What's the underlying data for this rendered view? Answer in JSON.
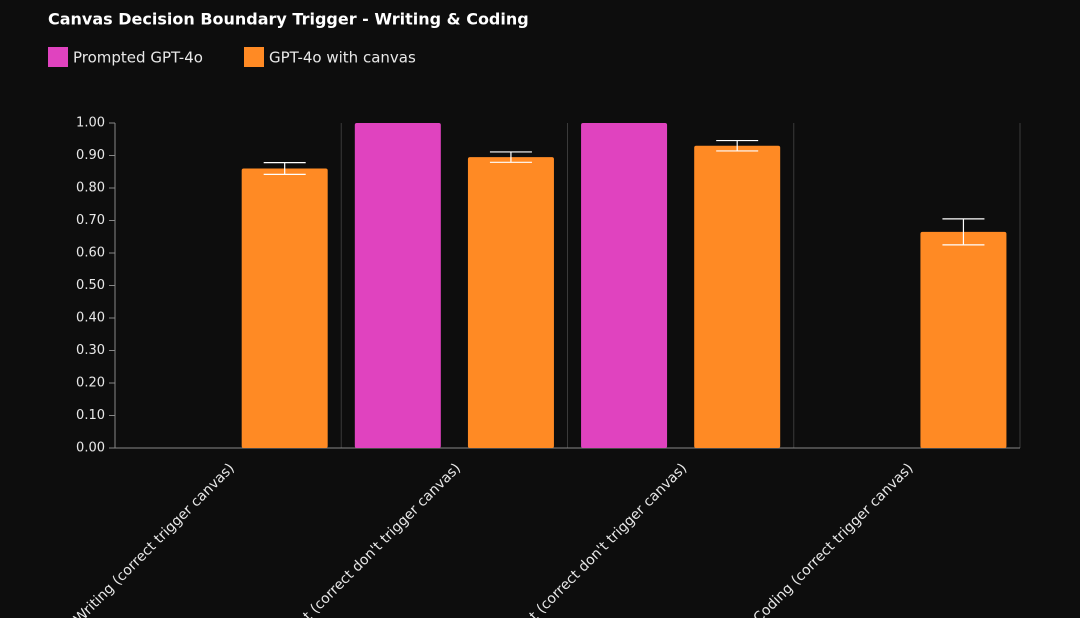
{
  "chart_data": {
    "type": "bar",
    "title": "Canvas Decision Boundary Trigger - Writing & Coding",
    "categories": [
      "Writing (correct trigger canvas)",
      "t (correct don't trigger canvas)",
      "t (correct don't trigger canvas)",
      "Coding (correct trigger canvas)"
    ],
    "series": [
      {
        "name": "Prompted GPT-4o",
        "color": "#e043bf",
        "values": [
          null,
          1.0,
          1.0,
          null
        ]
      },
      {
        "name": "GPT-4o with canvas",
        "color": "#ff8a24",
        "values": [
          0.86,
          0.895,
          0.93,
          0.665
        ],
        "errors": [
          0.018,
          0.016,
          0.016,
          0.04
        ]
      }
    ],
    "ylim": [
      0,
      1
    ],
    "yticks": [
      {
        "value": 0,
        "label": "0.00"
      },
      {
        "value": 0.1,
        "label": "0.10"
      },
      {
        "value": 0.2,
        "label": "0.20"
      },
      {
        "value": 0.3,
        "label": "0.30"
      },
      {
        "value": 0.4,
        "label": "0.40"
      },
      {
        "value": 0.5,
        "label": "0.50"
      },
      {
        "value": 0.6,
        "label": "0.60"
      },
      {
        "value": 0.7,
        "label": "0.70"
      },
      {
        "value": 0.8,
        "label": "0.80"
      },
      {
        "value": 0.9,
        "label": "0.90"
      },
      {
        "value": 1,
        "label": "1.00"
      }
    ],
    "legend": "top-left"
  }
}
